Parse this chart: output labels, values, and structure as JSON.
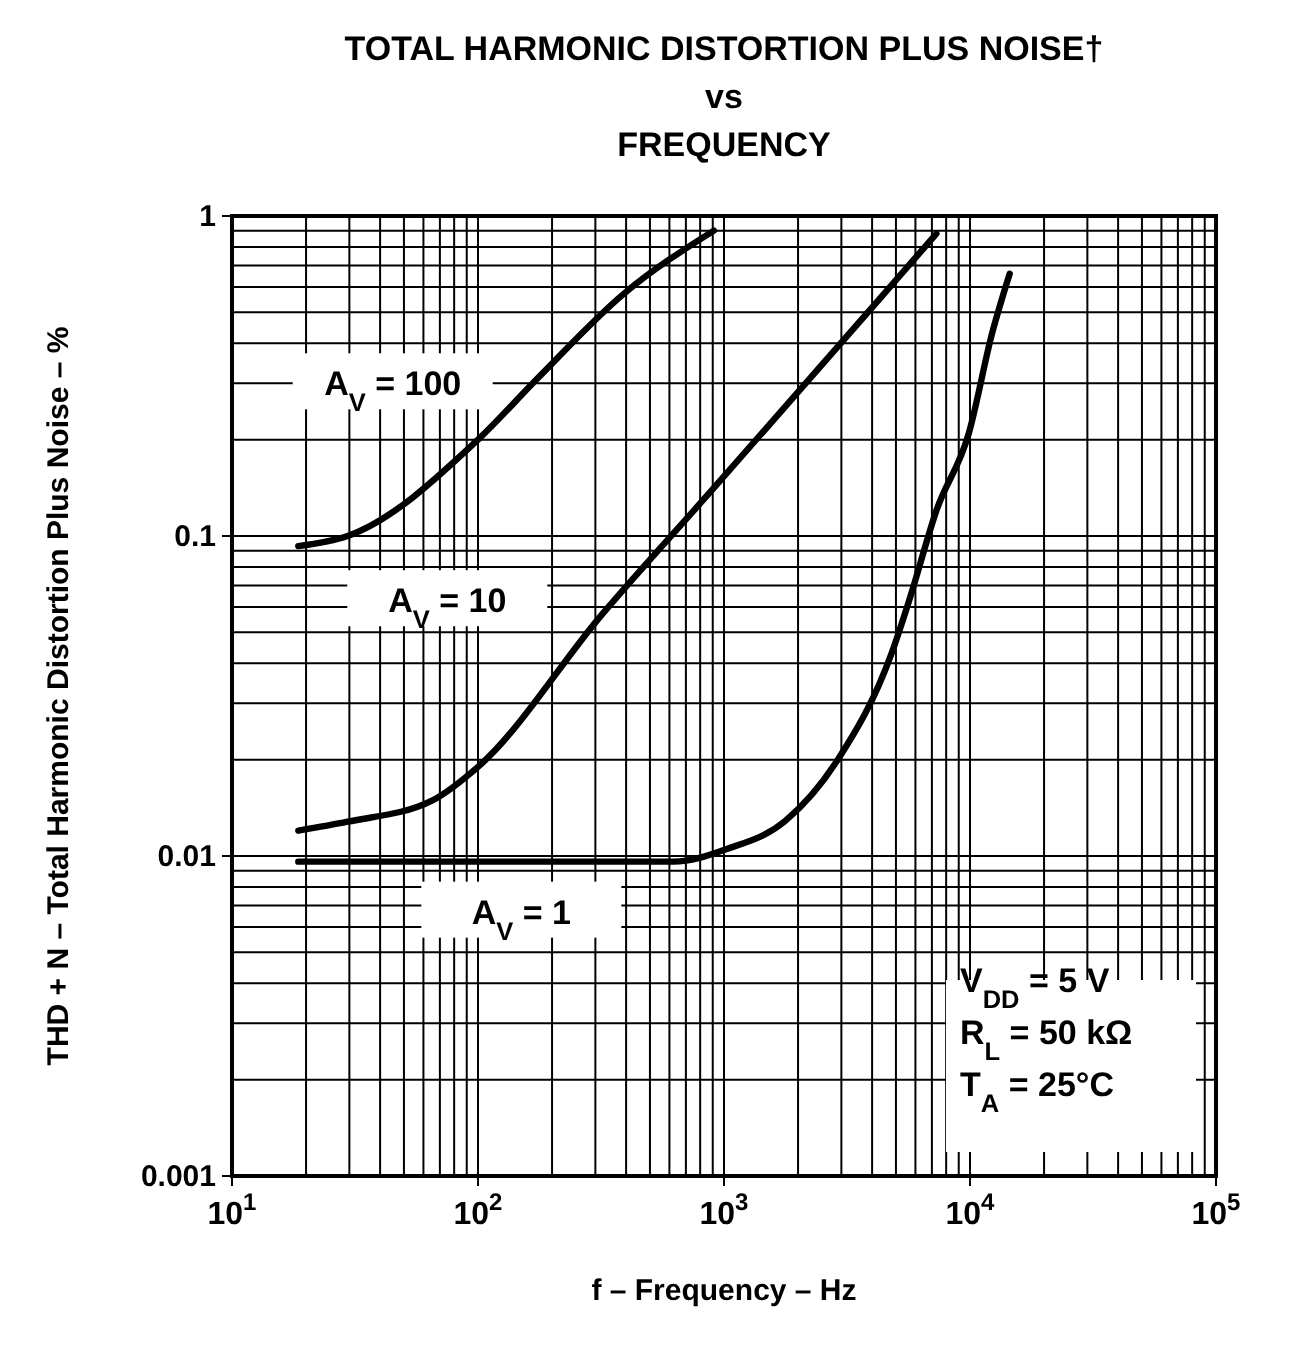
{
  "chart_data": {
    "type": "line",
    "title": "TOTAL HARMONIC DISTORTION PLUS NOISE†\nvs\nFREQUENCY",
    "xlabel": "f – Frequency – Hz",
    "ylabel": "THD + N – Total Harmonic Distortion Plus Noise – %",
    "log": "xy",
    "grid": true,
    "legend": false,
    "marker": "none",
    "line_style": "solid",
    "xlim": [
      10,
      100000
    ],
    "ylim": [
      0.001,
      1
    ],
    "xticks": [
      {
        "value": 10,
        "label": "10$^{1}$"
      },
      {
        "value": 100,
        "label": "10$^{2}$"
      },
      {
        "value": 1000,
        "label": "10$^{3}$"
      },
      {
        "value": 10000,
        "label": "10$^{4}$"
      },
      {
        "value": 100000,
        "label": "10$^{5}$"
      }
    ],
    "yticks": [
      0.001,
      0.01,
      0.1,
      1
    ],
    "series": [
      {
        "name": "A$_{V}$ = 100",
        "color": "#000000",
        "x": [
          18.6,
          29.5,
          100,
          174,
          390,
          910
        ],
        "values": [
          0.093,
          0.1,
          0.2,
          0.31,
          0.57,
          0.9
        ]
      },
      {
        "name": "A$_{V}$ = 10",
        "color": "#000000",
        "x": [
          18.6,
          29.5,
          65,
          100,
          320,
          900,
          3930,
          7300
        ],
        "values": [
          0.012,
          0.0128,
          0.0149,
          0.019,
          0.057,
          0.14,
          0.51,
          0.88
        ]
      },
      {
        "name": "A$_{V}$ = 1",
        "color": "#000000",
        "x": [
          18.6,
          625,
          1020,
          1780,
          2900,
          4800,
          5700,
          7300,
          9900,
          12300,
          14500
        ],
        "values": [
          0.0096,
          0.0096,
          0.0105,
          0.0129,
          0.02,
          0.043,
          0.064,
          0.12,
          0.21,
          0.43,
          0.66
        ]
      }
    ],
    "annotations": [
      "V$_{DD}$ = 5 V",
      "R$_{L}$ = 50 kΩ",
      "T$_{A}$ = 25°C"
    ]
  }
}
